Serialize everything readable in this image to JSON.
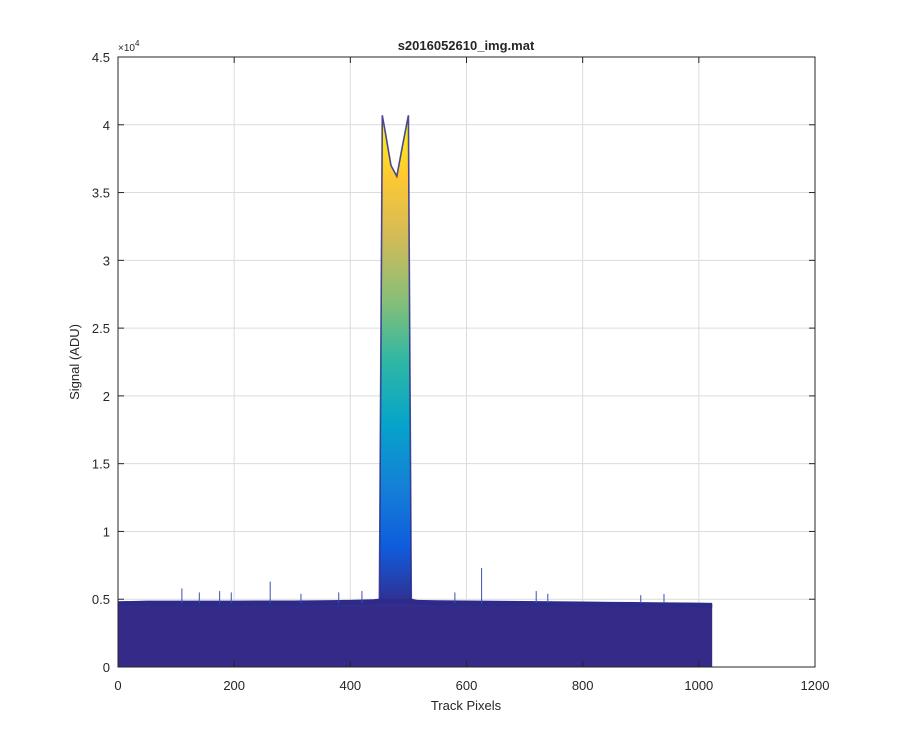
{
  "chart_data": {
    "type": "area",
    "title": "s2016052610_img.mat",
    "xlabel": "Track Pixels",
    "ylabel": "Signal (ADU)",
    "xlim": [
      0,
      1200
    ],
    "ylim": [
      0,
      45000
    ],
    "xticks": [
      0,
      200,
      400,
      600,
      800,
      1000,
      1200
    ],
    "yticks": [
      0,
      5000,
      10000,
      15000,
      20000,
      25000,
      30000,
      35000,
      40000,
      45000
    ],
    "ytick_labels": [
      "0",
      "0.5",
      "1",
      "1.5",
      "2",
      "2.5",
      "3",
      "3.5",
      "4",
      "4.5"
    ],
    "y_exponent_label": "×10",
    "y_exponent_power": "4",
    "grid": true,
    "colormap": "parula",
    "colormap_stops": [
      "#352a87",
      "#0f5cdd",
      "#1481d6",
      "#06a4ca",
      "#2eb7a4",
      "#87bf77",
      "#d1bb59",
      "#fec832",
      "#f9fb0e"
    ],
    "baseline_color": "#2d2a8a",
    "series": [
      {
        "x": [
          0,
          50,
          100,
          150,
          200,
          250,
          300,
          350,
          400,
          440,
          450,
          455,
          460,
          470,
          480,
          490,
          500,
          505,
          510,
          515,
          550,
          600,
          650,
          700,
          750,
          800,
          850,
          900,
          950,
          1000,
          1023
        ],
        "y": [
          4700,
          4750,
          4750,
          4750,
          4750,
          4760,
          4760,
          4780,
          4800,
          4850,
          4900,
          40700,
          39500,
          37000,
          36200,
          38500,
          40700,
          4900,
          4850,
          4800,
          4780,
          4760,
          4740,
          4720,
          4700,
          4680,
          4660,
          4640,
          4620,
          4600,
          4580
        ]
      }
    ],
    "spikes": [
      {
        "x": 110,
        "y": 5800
      },
      {
        "x": 140,
        "y": 5500
      },
      {
        "x": 175,
        "y": 5600
      },
      {
        "x": 195,
        "y": 5500
      },
      {
        "x": 262,
        "y": 6300
      },
      {
        "x": 315,
        "y": 5400
      },
      {
        "x": 380,
        "y": 5500
      },
      {
        "x": 420,
        "y": 5600
      },
      {
        "x": 580,
        "y": 5500
      },
      {
        "x": 626,
        "y": 7300
      },
      {
        "x": 720,
        "y": 5600
      },
      {
        "x": 740,
        "y": 5400
      },
      {
        "x": 900,
        "y": 5300
      },
      {
        "x": 940,
        "y": 5400
      }
    ]
  }
}
